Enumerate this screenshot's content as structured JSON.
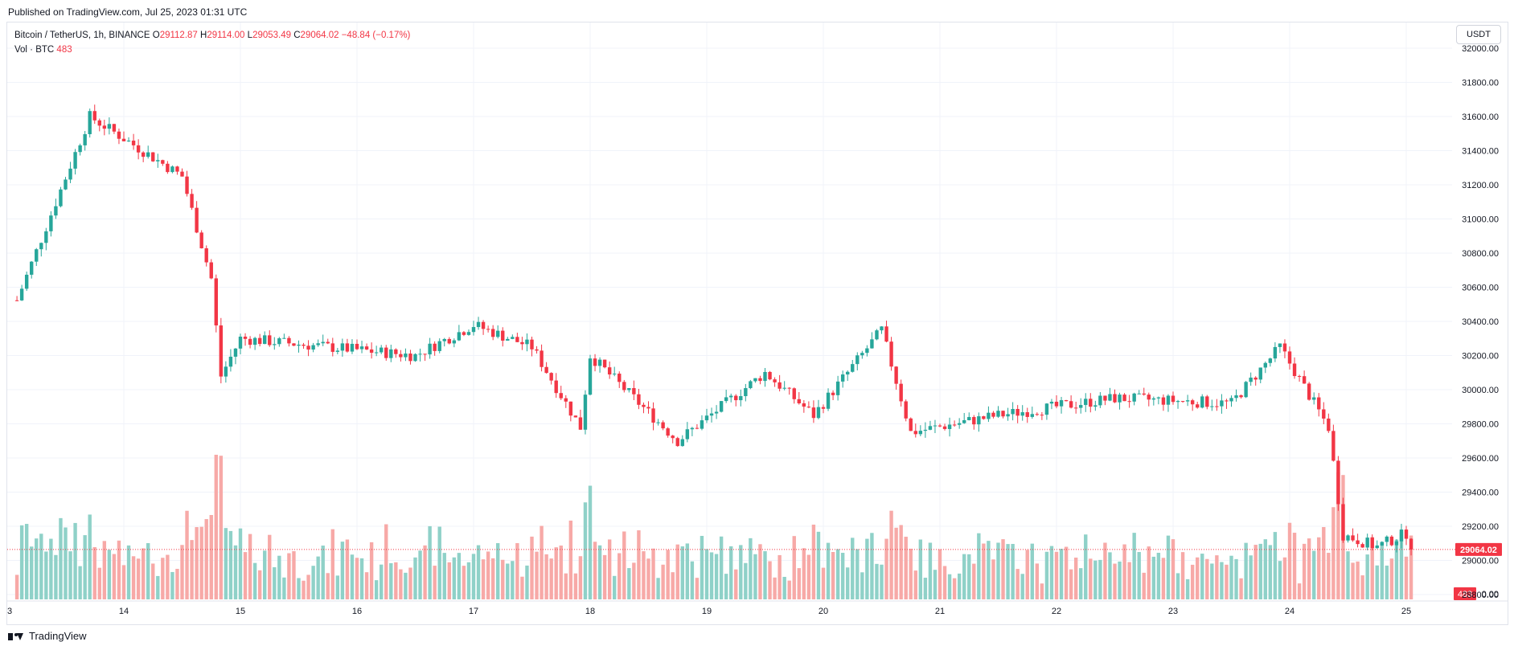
{
  "header": {
    "published": "Published on TradingView.com, Jul 25, 2023 01:31 UTC"
  },
  "legend": {
    "symbol": "Bitcoin / TetherUS, 1h, BINANCE",
    "o_label": "O",
    "o_value": "29112.87",
    "h_label": "H",
    "h_value": "29114.00",
    "l_label": "L",
    "l_value": "29053.49",
    "c_label": "C",
    "c_value": "29064.02",
    "change": "−48.84 (−0.17%)",
    "vol_label": "Vol · BTC",
    "vol_value": "483"
  },
  "currency_button": "USDT",
  "footer": {
    "brand": "TradingView"
  },
  "colors": {
    "up": "#26a69a",
    "down": "#f23645",
    "up_vol": "#8fd1c8",
    "down_vol": "#f7a9a7",
    "grid": "#f0f3fa"
  },
  "chart_data": {
    "type": "candlestick",
    "y_axis": {
      "range": [
        28800,
        32000
      ],
      "ticks": [
        "32000.00",
        "31800.00",
        "31600.00",
        "31400.00",
        "31200.00",
        "31000.00",
        "30800.00",
        "30600.00",
        "30400.00",
        "30200.00",
        "30000.00",
        "29800.00",
        "29600.00",
        "29400.00",
        "29200.00",
        "29000.00",
        "28800.00"
      ],
      "position": "right"
    },
    "x_axis": {
      "ticks": [
        "3",
        "14",
        "15",
        "16",
        "17",
        "18",
        "19",
        "20",
        "21",
        "22",
        "23",
        "24",
        "25"
      ]
    },
    "last_price": "29064.02",
    "last_volume": "483",
    "volume_axis_label": "0.00",
    "key_points": [
      {
        "x": "Jul 13 00:00",
        "close": 30380
      },
      {
        "x": "Jul 13 17:00",
        "close": 31600
      },
      {
        "x": "Jul 14 12:00",
        "close": 31250
      },
      {
        "x": "Jul 14 18:00",
        "close": 30650
      },
      {
        "x": "Jul 14 20:00",
        "close": 30080
      },
      {
        "x": "Jul 15 00:00",
        "close": 30300
      },
      {
        "x": "Jul 16 12:00",
        "close": 30200
      },
      {
        "x": "Jul 17 00:00",
        "close": 30380
      },
      {
        "x": "Jul 17 12:00",
        "close": 30250
      },
      {
        "x": "Jul 17 22:00",
        "close": 29780
      },
      {
        "x": "Jul 18 00:00",
        "close": 30200
      },
      {
        "x": "Jul 18 18:00",
        "close": 29700
      },
      {
        "x": "Jul 19 12:00",
        "close": 30100
      },
      {
        "x": "Jul 19 22:00",
        "close": 29850
      },
      {
        "x": "Jul 20 12:00",
        "close": 30350
      },
      {
        "x": "Jul 20 18:00",
        "close": 29750
      },
      {
        "x": "Jul 21 12:00",
        "close": 29850
      },
      {
        "x": "Jul 22 12:00",
        "close": 29950
      },
      {
        "x": "Jul 23 12:00",
        "close": 29920
      },
      {
        "x": "Jul 23 22:00",
        "close": 30250
      },
      {
        "x": "Jul 24 08:00",
        "close": 29780
      },
      {
        "x": "Jul 24 11:00",
        "close": 29150
      },
      {
        "x": "Jul 24 18:00",
        "close": 29080
      },
      {
        "x": "Jul 25 00:00",
        "close": 29160
      },
      {
        "x": "Jul 25 01:00",
        "close": 29064
      }
    ]
  }
}
